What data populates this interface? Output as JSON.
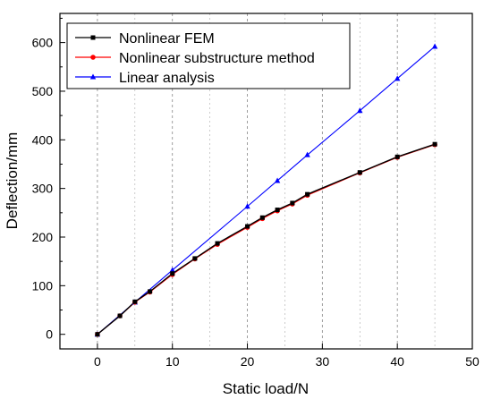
{
  "chart_data": {
    "type": "line",
    "title": "",
    "xlabel": "Static load/N",
    "ylabel": "Deflection/mm",
    "xlim": [
      -5,
      50
    ],
    "ylim": [
      -30,
      660
    ],
    "xticks": [
      0,
      10,
      20,
      30,
      40,
      50
    ],
    "yticks": [
      0,
      100,
      200,
      300,
      400,
      500,
      600
    ],
    "grid": "vertical dashed at x ticks",
    "legend": "top-left",
    "series": [
      {
        "name": "Nonlinear FEM",
        "color": "#000000",
        "marker": "square",
        "x": [
          0,
          3,
          5,
          7,
          10,
          13,
          16,
          20,
          22,
          24,
          26,
          28,
          35,
          40,
          45
        ],
        "y": [
          0,
          38,
          67,
          88,
          125,
          156,
          187,
          222,
          240,
          256,
          270,
          288,
          333,
          365,
          391
        ]
      },
      {
        "name": "Nonlinear substructure method",
        "color": "#ff0000",
        "marker": "circle",
        "x": [
          0,
          3,
          5,
          7,
          10,
          13,
          16,
          20,
          22,
          24,
          26,
          28,
          35,
          40,
          45
        ],
        "y": [
          0,
          38,
          66,
          87,
          123,
          155,
          185,
          220,
          238,
          254,
          268,
          286,
          332,
          364,
          390
        ]
      },
      {
        "name": "Linear analysis",
        "color": "#0000ff",
        "marker": "triangle",
        "x": [
          0,
          5,
          10,
          20,
          24,
          28,
          35,
          40,
          45
        ],
        "y": [
          0,
          66,
          132,
          263,
          316,
          369,
          460,
          526,
          592
        ]
      }
    ]
  }
}
